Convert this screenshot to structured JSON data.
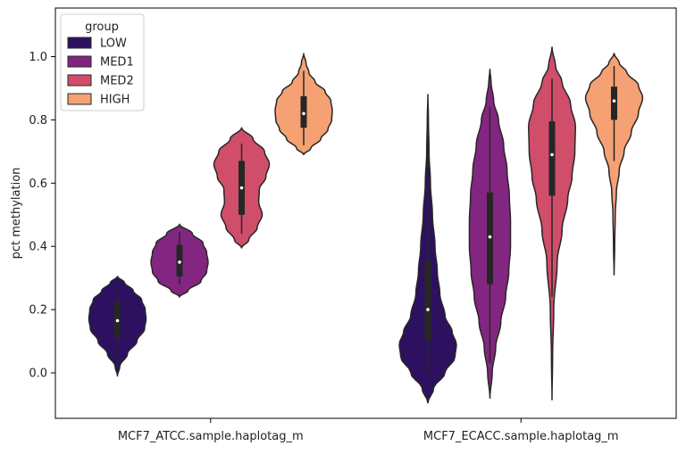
{
  "chart_data": {
    "type": "violin",
    "ylabel": "pct methylation",
    "xlabel": "",
    "ylim": [
      -0.145,
      1.155
    ],
    "yticks": [
      0.0,
      0.2,
      0.4,
      0.6,
      0.8,
      1.0
    ],
    "ytick_labels": [
      "0.0",
      "0.2",
      "0.4",
      "0.6",
      "0.8",
      "1.0"
    ],
    "categories": [
      "MCF7_ATCC.sample.haplotag_m",
      "MCF7_ECACC.sample.haplotag_m"
    ],
    "legend": {
      "title": "group",
      "placement": "top-left"
    },
    "series": [
      {
        "name": "LOW",
        "color": "#2d1160",
        "groups": [
          {
            "category": "MCF7_ATCC.sample.haplotag_m",
            "min": -0.01,
            "max": 0.305,
            "q1": 0.11,
            "median": 0.165,
            "q3": 0.225,
            "whisker_low": 0.02,
            "whisker_high": 0.285,
            "density": [
              [
                -0.01,
                0.0
              ],
              [
                0.02,
                0.08
              ],
              [
                0.06,
                0.35
              ],
              [
                0.1,
                0.68
              ],
              [
                0.14,
                0.95
              ],
              [
                0.17,
                1.0
              ],
              [
                0.2,
                0.97
              ],
              [
                0.23,
                0.85
              ],
              [
                0.26,
                0.55
              ],
              [
                0.285,
                0.25
              ],
              [
                0.305,
                0.0
              ]
            ]
          },
          {
            "category": "MCF7_ECACC.sample.haplotag_m",
            "min": -0.095,
            "max": 0.88,
            "q1": 0.1,
            "median": 0.2,
            "q3": 0.355,
            "whisker_low": 0.0,
            "whisker_high": 0.77,
            "density": [
              [
                -0.095,
                0.0
              ],
              [
                -0.05,
                0.2
              ],
              [
                0.0,
                0.6
              ],
              [
                0.05,
                0.95
              ],
              [
                0.09,
                1.0
              ],
              [
                0.13,
                0.85
              ],
              [
                0.18,
                0.6
              ],
              [
                0.25,
                0.42
              ],
              [
                0.32,
                0.33
              ],
              [
                0.4,
                0.25
              ],
              [
                0.5,
                0.16
              ],
              [
                0.6,
                0.09
              ],
              [
                0.7,
                0.04
              ],
              [
                0.8,
                0.02
              ],
              [
                0.88,
                0.0
              ]
            ]
          }
        ]
      },
      {
        "name": "MED1",
        "color": "#832681",
        "groups": [
          {
            "category": "MCF7_ATCC.sample.haplotag_m",
            "min": 0.24,
            "max": 0.47,
            "q1": 0.305,
            "median": 0.35,
            "q3": 0.405,
            "whisker_low": 0.28,
            "whisker_high": 0.445,
            "density": [
              [
                0.24,
                0.0
              ],
              [
                0.26,
                0.3
              ],
              [
                0.29,
                0.75
              ],
              [
                0.32,
                0.95
              ],
              [
                0.35,
                1.0
              ],
              [
                0.38,
                0.95
              ],
              [
                0.41,
                0.82
              ],
              [
                0.44,
                0.45
              ],
              [
                0.47,
                0.0
              ]
            ]
          },
          {
            "category": "MCF7_ECACC.sample.haplotag_m",
            "min": -0.08,
            "max": 0.96,
            "q1": 0.28,
            "median": 0.43,
            "q3": 0.57,
            "whisker_low": 0.03,
            "whisker_high": 0.84,
            "density": [
              [
                -0.08,
                0.0
              ],
              [
                0.0,
                0.08
              ],
              [
                0.08,
                0.2
              ],
              [
                0.16,
                0.38
              ],
              [
                0.24,
                0.55
              ],
              [
                0.32,
                0.66
              ],
              [
                0.4,
                0.72
              ],
              [
                0.48,
                0.72
              ],
              [
                0.56,
                0.68
              ],
              [
                0.64,
                0.6
              ],
              [
                0.72,
                0.48
              ],
              [
                0.8,
                0.3
              ],
              [
                0.86,
                0.13
              ],
              [
                0.92,
                0.04
              ],
              [
                0.96,
                0.0
              ]
            ]
          }
        ]
      },
      {
        "name": "MED2",
        "color": "#d14e6b",
        "groups": [
          {
            "category": "MCF7_ATCC.sample.haplotag_m",
            "min": 0.395,
            "max": 0.775,
            "q1": 0.5,
            "median": 0.585,
            "q3": 0.67,
            "whisker_low": 0.44,
            "whisker_high": 0.725,
            "density": [
              [
                0.395,
                0.0
              ],
              [
                0.42,
                0.25
              ],
              [
                0.46,
                0.55
              ],
              [
                0.5,
                0.72
              ],
              [
                0.54,
                0.6
              ],
              [
                0.58,
                0.62
              ],
              [
                0.62,
                0.85
              ],
              [
                0.66,
                0.97
              ],
              [
                0.7,
                0.8
              ],
              [
                0.74,
                0.4
              ],
              [
                0.775,
                0.0
              ]
            ]
          },
          {
            "category": "MCF7_ECACC.sample.haplotag_m",
            "min": -0.085,
            "max": 1.03,
            "q1": 0.56,
            "median": 0.69,
            "q3": 0.795,
            "whisker_low": 0.24,
            "whisker_high": 0.93,
            "density": [
              [
                -0.085,
                0.0
              ],
              [
                0.05,
                0.02
              ],
              [
                0.2,
                0.06
              ],
              [
                0.35,
                0.18
              ],
              [
                0.45,
                0.35
              ],
              [
                0.55,
                0.55
              ],
              [
                0.62,
                0.7
              ],
              [
                0.7,
                0.8
              ],
              [
                0.78,
                0.82
              ],
              [
                0.85,
                0.65
              ],
              [
                0.92,
                0.35
              ],
              [
                0.97,
                0.12
              ],
              [
                1.03,
                0.0
              ]
            ]
          }
        ]
      },
      {
        "name": "HIGH",
        "color": "#f5a173",
        "groups": [
          {
            "category": "MCF7_ATCC.sample.haplotag_m",
            "min": 0.69,
            "max": 1.01,
            "q1": 0.775,
            "median": 0.82,
            "q3": 0.875,
            "whisker_low": 0.72,
            "whisker_high": 0.955,
            "density": [
              [
                0.69,
                0.0
              ],
              [
                0.71,
                0.25
              ],
              [
                0.74,
                0.6
              ],
              [
                0.77,
                0.85
              ],
              [
                0.8,
                0.98
              ],
              [
                0.83,
                1.0
              ],
              [
                0.86,
                0.95
              ],
              [
                0.89,
                0.75
              ],
              [
                0.92,
                0.4
              ],
              [
                0.95,
                0.18
              ],
              [
                0.98,
                0.08
              ],
              [
                1.01,
                0.0
              ]
            ]
          },
          {
            "category": "MCF7_ECACC.sample.haplotag_m",
            "min": 0.31,
            "max": 1.01,
            "q1": 0.8,
            "median": 0.86,
            "q3": 0.905,
            "whisker_low": 0.67,
            "whisker_high": 0.97,
            "density": [
              [
                0.31,
                0.0
              ],
              [
                0.4,
                0.02
              ],
              [
                0.5,
                0.04
              ],
              [
                0.57,
                0.08
              ],
              [
                0.64,
                0.18
              ],
              [
                0.7,
                0.35
              ],
              [
                0.76,
                0.6
              ],
              [
                0.82,
                0.85
              ],
              [
                0.87,
                1.0
              ],
              [
                0.91,
                0.85
              ],
              [
                0.95,
                0.45
              ],
              [
                0.98,
                0.18
              ],
              [
                1.01,
                0.0
              ]
            ]
          }
        ]
      }
    ]
  }
}
